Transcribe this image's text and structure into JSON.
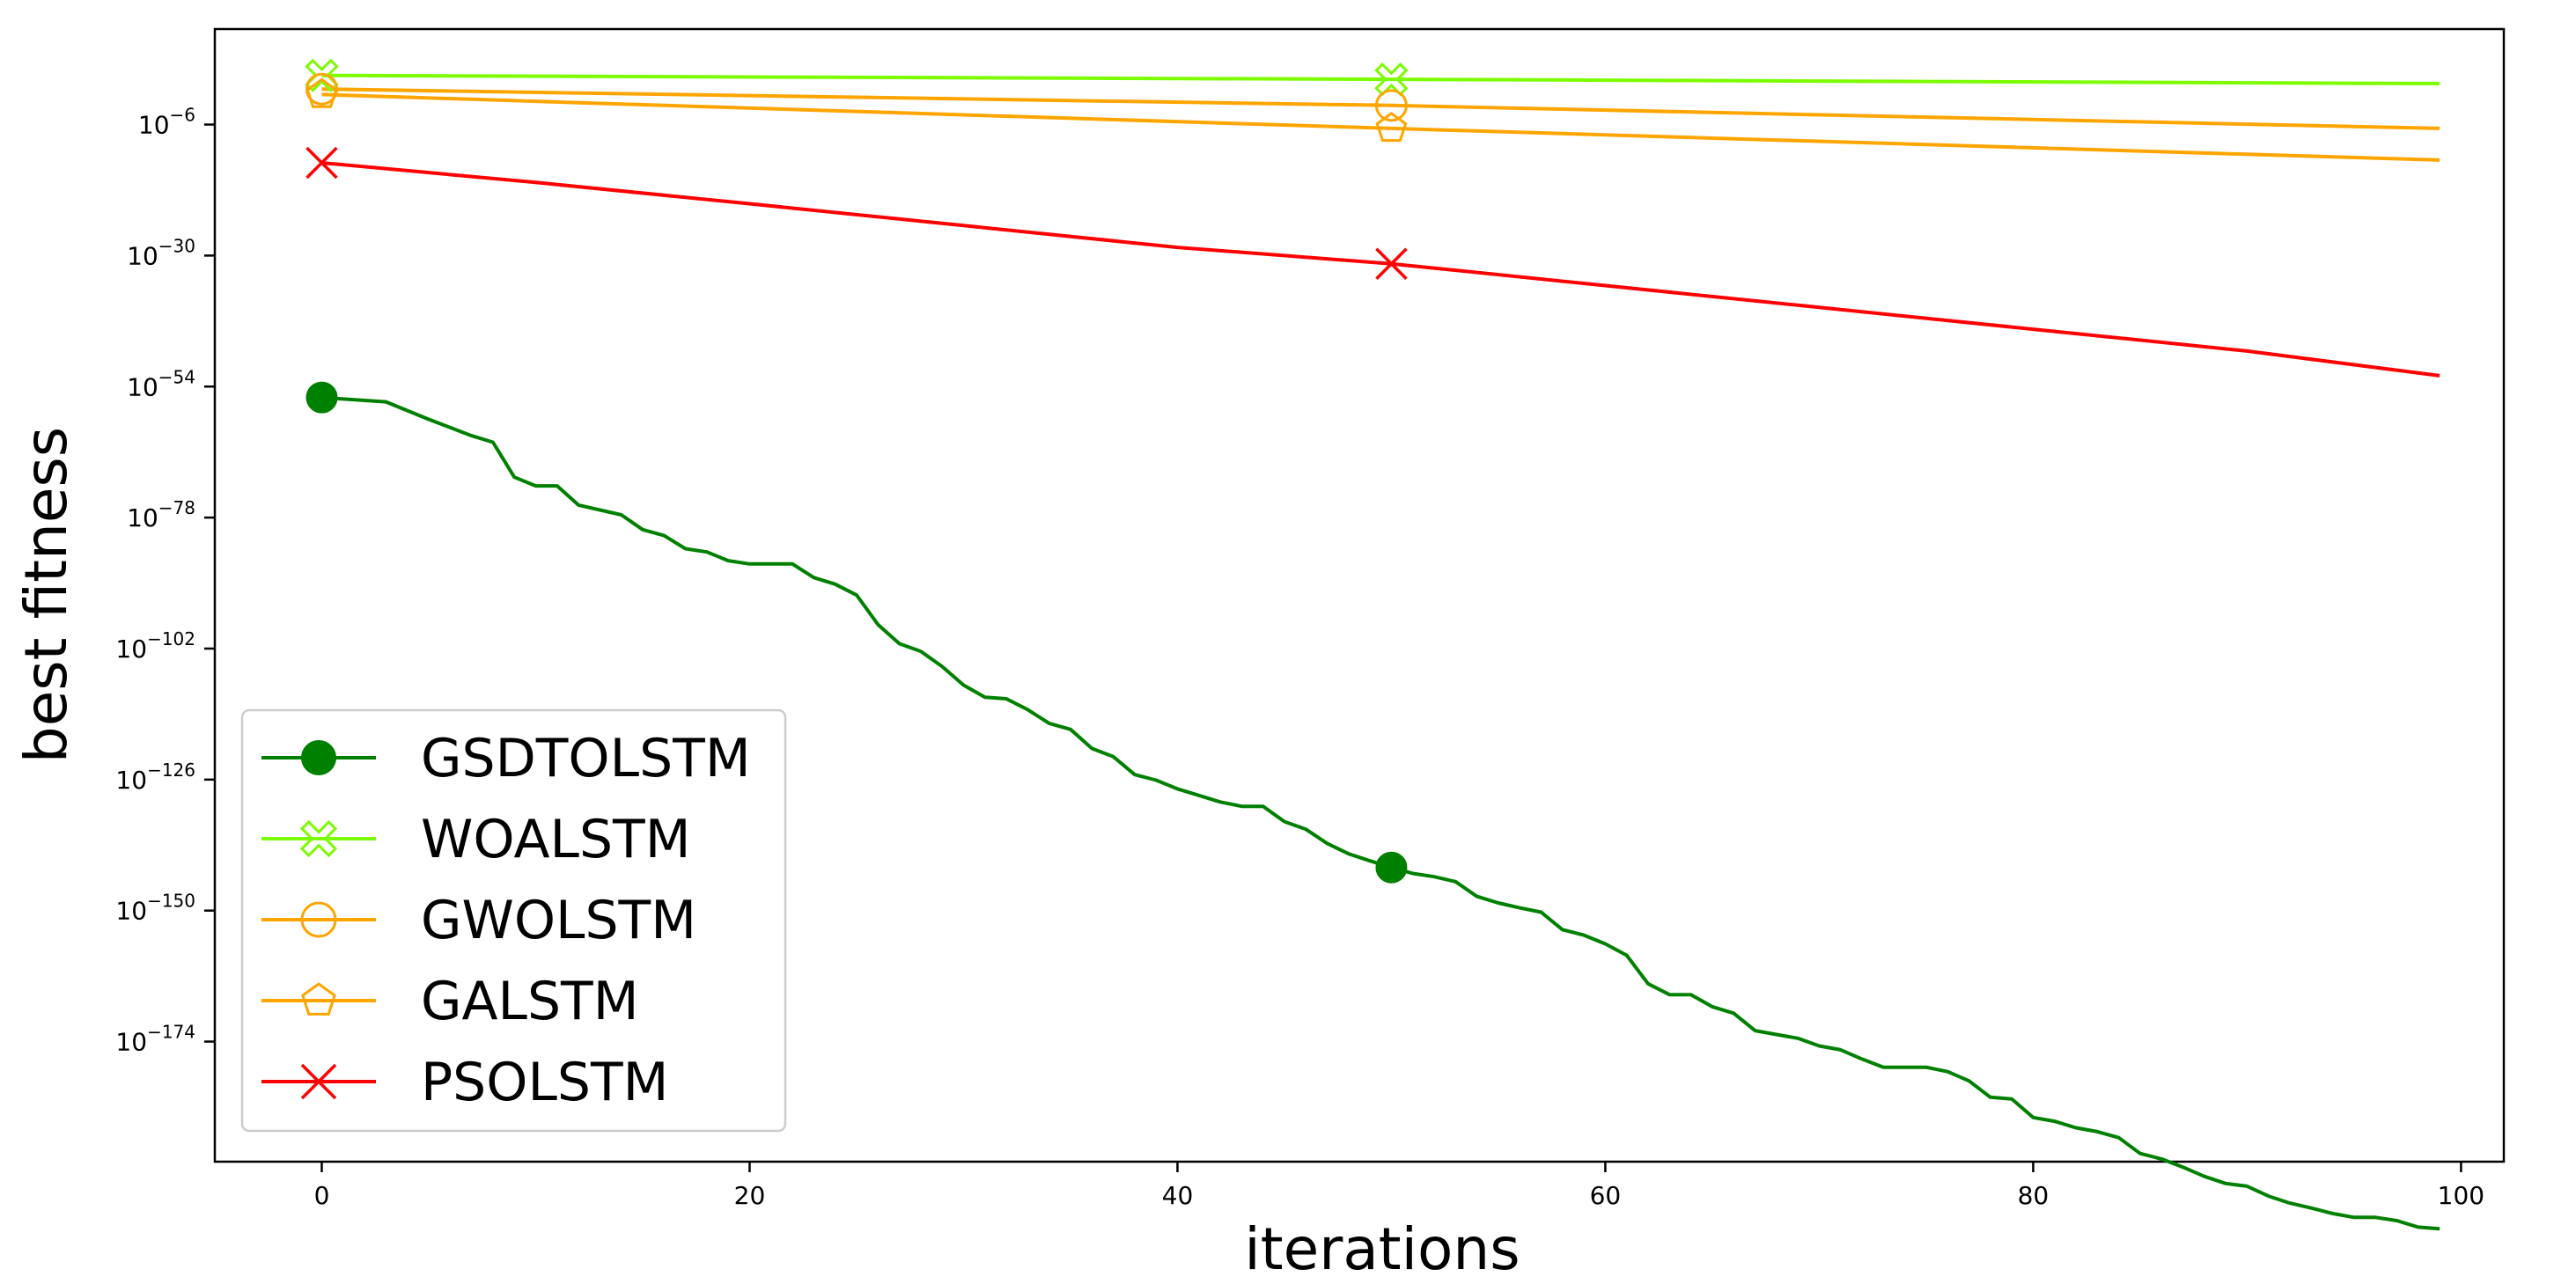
{
  "chart_data": {
    "type": "line",
    "title": "",
    "xlabel": "iterations",
    "ylabel": "best fitness",
    "xlim": [
      -5,
      102
    ],
    "ylim_log10": [
      -196,
      11.5
    ],
    "y_scale": "log",
    "grid": false,
    "legend_placement": "lower-left",
    "x_ticks": [
      0,
      20,
      40,
      60,
      80,
      100
    ],
    "y_ticks": [
      {
        "base": "10",
        "exp": "−6",
        "log10": -6
      },
      {
        "base": "10",
        "exp": "−30",
        "log10": -30
      },
      {
        "base": "10",
        "exp": "−54",
        "log10": -54
      },
      {
        "base": "10",
        "exp": "−78",
        "log10": -78
      },
      {
        "base": "10",
        "exp": "−102",
        "log10": -102
      },
      {
        "base": "10",
        "exp": "−126",
        "log10": -126
      },
      {
        "base": "10",
        "exp": "−150",
        "log10": -150
      },
      {
        "base": "10",
        "exp": "−174",
        "log10": -174
      }
    ],
    "series": [
      {
        "name": "GSDTOLSTM",
        "color": "#008000",
        "marker": "filled-circle",
        "x": [
          0,
          3,
          5,
          7,
          8,
          9,
          10,
          11,
          12,
          14,
          15,
          16,
          17,
          18,
          19,
          20,
          22,
          23,
          24,
          25,
          26,
          27,
          28,
          29,
          30,
          31,
          32,
          33,
          34,
          35,
          36,
          37,
          38,
          39,
          40,
          41,
          42,
          43,
          44,
          45,
          46,
          47,
          48,
          49,
          50,
          51,
          52,
          53,
          54,
          55,
          56,
          57,
          58,
          59,
          60,
          61,
          62,
          63,
          64,
          65,
          66,
          67,
          68,
          69,
          70,
          71,
          72,
          73,
          74,
          75,
          76,
          77,
          78,
          79,
          80,
          81,
          82,
          83,
          84,
          85,
          86,
          87,
          88,
          89,
          90,
          91,
          92,
          93,
          94,
          95,
          96,
          97,
          98,
          99
        ],
        "log10": [
          -56,
          -56.8,
          -60,
          -63,
          -64.2,
          -70.6,
          -72.2,
          -72.2,
          -75.7,
          -77.5,
          -80.2,
          -81.3,
          -83.7,
          -84.3,
          -85.9,
          -86.5,
          -86.5,
          -89,
          -90.2,
          -92.2,
          -97.6,
          -101.1,
          -102.5,
          -105.3,
          -108.7,
          -110.9,
          -111.2,
          -113.2,
          -115.7,
          -116.8,
          -120.3,
          -121.8,
          -125.1,
          -126.1,
          -127.7,
          -128.9,
          -130.1,
          -130.9,
          -130.9,
          -133.7,
          -135.1,
          -137.7,
          -139.6,
          -140.9,
          -142.1,
          -143.2,
          -143.8,
          -144.7,
          -147.4,
          -148.6,
          -149.5,
          -150.3,
          -153.5,
          -154.5,
          -156.1,
          -158.2,
          -163.4,
          -165.4,
          -165.4,
          -167.6,
          -168.8,
          -172,
          -172.7,
          -173.4,
          -174.8,
          -175.5,
          -177.2,
          -178.7,
          -178.7,
          -178.7,
          -179.5,
          -181.2,
          -184.2,
          -184.5,
          -187.9,
          -188.6,
          -189.8,
          -190.5,
          -191.6,
          -194.5,
          -195.5,
          -197,
          -198.7,
          -200,
          -200.5,
          -202.3,
          -203.6,
          -204.5,
          -205.5,
          -206.2,
          -206.2,
          -206.8,
          -208,
          -208.3
        ],
        "marker_x": [
          0,
          50
        ]
      },
      {
        "name": "WOALSTM",
        "color": "#7cfc00",
        "marker": "open-x",
        "x": [
          0,
          50,
          99
        ],
        "log10": [
          3,
          2.3,
          1.5
        ],
        "marker_x": [
          0,
          50
        ]
      },
      {
        "name": "GWOLSTM",
        "color": "#ffa500",
        "marker": "open-circle",
        "x": [
          0,
          50,
          99
        ],
        "log10": [
          0.5,
          -2.5,
          -6.7
        ],
        "marker_x": [
          0,
          50
        ]
      },
      {
        "name": "GALSTM",
        "color": "#ffa500",
        "marker": "open-pentagon",
        "x": [
          0,
          50,
          99
        ],
        "log10": [
          -0.5,
          -6.7,
          -12.5
        ],
        "marker_x": [
          0,
          50
        ]
      },
      {
        "name": "PSOLSTM",
        "color": "#ff0000",
        "marker": "x",
        "x": [
          0,
          10,
          20,
          30,
          40,
          50,
          60,
          70,
          80,
          90,
          99
        ],
        "log10": [
          -13,
          -16.6,
          -20.5,
          -24.5,
          -28.5,
          -31.5,
          -35.5,
          -39.5,
          -43.5,
          -47.5,
          -52
        ],
        "marker_x": [
          0,
          50
        ]
      }
    ]
  }
}
